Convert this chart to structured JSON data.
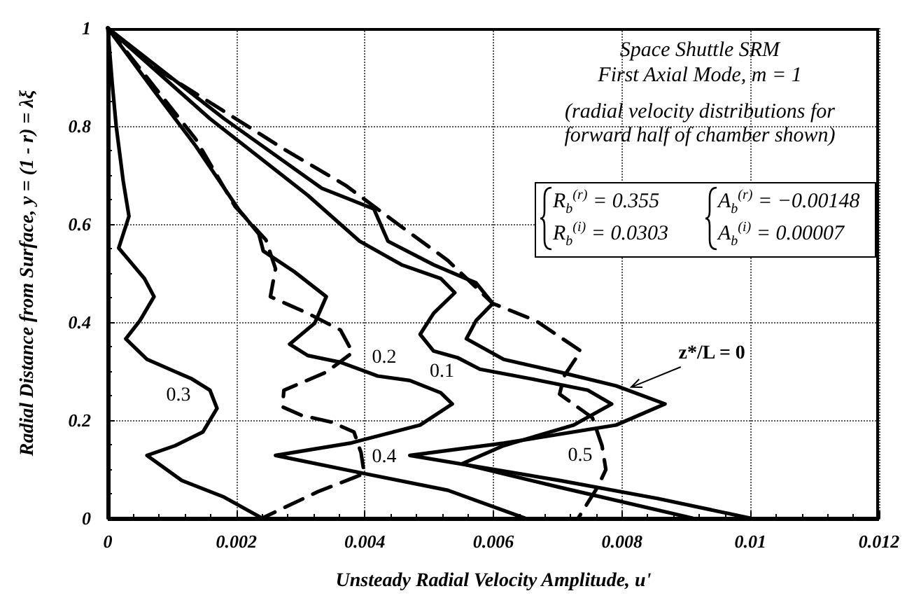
{
  "chart_data": {
    "type": "line",
    "title": "Space Shuttle SRM",
    "subtitle": "First Axial Mode, m = 1",
    "xlabel": "Unsteady Radial Velocity Amplitude, u'",
    "ylabel": "Radial Distance from Surface, y = (1 - r) = λξ",
    "annotations": [
      "(radial velocity distributions for forward half of chamber shown)",
      "R$_{b}$$^{(r)}$ = 0.355",
      "R$_{b}$$^{(i)}$ = 0.0303",
      "A$_{b}$$^{(r)}$ = −0.00148",
      "A$_{b}$$^{(i)}$ = 0.00007"
    ],
    "xlim": [
      0,
      0.012
    ],
    "xticks": [
      0,
      0.002,
      0.004,
      0.006,
      0.008,
      0.01,
      0.012
    ],
    "ylim": [
      0,
      1
    ],
    "yticks": [
      0,
      0.2,
      0.4,
      0.6,
      0.8,
      1
    ],
    "grid": true,
    "legend": false,
    "marker": "none",
    "series": [
      {
        "name": "z*/L = 0",
        "color": "#000000",
        "line_style": "solid",
        "x": [
          0,
          0.00181,
          0.00333,
          0.00414,
          0.00436,
          0.00507,
          0.00573,
          0.00599,
          0.00573,
          0.00558,
          0.00616,
          0.00703,
          0.00791,
          0.00867,
          0.00791,
          0.00616,
          0.0047,
          0.00703,
          0.00856,
          0.01
        ],
        "values": [
          1,
          0.815,
          0.673,
          0.631,
          0.565,
          0.517,
          0.48,
          0.438,
          0.403,
          0.366,
          0.324,
          0.298,
          0.27,
          0.233,
          0.19,
          0.153,
          0.128,
          0.077,
          0.04,
          0
        ]
      },
      {
        "name": "0.1",
        "color": "#000000",
        "line_style": "solid",
        "x": [
          0,
          0.00159,
          0.00311,
          0.00392,
          0.00457,
          0.00518,
          0.0054,
          0.00507,
          0.00486,
          0.00507,
          0.00545,
          0.00579,
          0.0066,
          0.00747,
          0.00784,
          0.00725,
          0.00616,
          0.00551,
          0.00703,
          0.0091
        ],
        "values": [
          1,
          0.815,
          0.659,
          0.565,
          0.517,
          0.489,
          0.46,
          0.418,
          0.375,
          0.341,
          0.327,
          0.304,
          0.284,
          0.261,
          0.233,
          0.19,
          0.148,
          0.111,
          0.063,
          0
        ]
      },
      {
        "name": "0.2",
        "color": "#000000",
        "line_style": "solid",
        "x": [
          0,
          0.00072,
          0.00137,
          0.00203,
          0.00235,
          0.00242,
          0.0029,
          0.0034,
          0.00322,
          0.00283,
          0.00311,
          0.00362,
          0.0042,
          0.0047,
          0.00518,
          0.00536,
          0.00486,
          0.00377,
          0.00261,
          0.00399,
          0.00529,
          0.00649
        ],
        "values": [
          1,
          0.872,
          0.759,
          0.631,
          0.58,
          0.545,
          0.503,
          0.452,
          0.398,
          0.355,
          0.332,
          0.318,
          0.29,
          0.281,
          0.256,
          0.233,
          0.19,
          0.153,
          0.128,
          0.091,
          0.057,
          0
        ]
      },
      {
        "name": "0.3",
        "color": "#000000",
        "line_style": "solid",
        "x": [
          0,
          7e-05,
          0.00013,
          0.00024,
          0.00033,
          0.00017,
          0.00039,
          0.00057,
          0.00072,
          0.0005,
          0.00028,
          0.00061,
          0.00131,
          0.00159,
          0.0017,
          0.00148,
          0.00105,
          0.00061,
          0.00115,
          0.00181,
          0.0024
        ],
        "values": [
          1,
          0.886,
          0.801,
          0.688,
          0.616,
          0.551,
          0.517,
          0.489,
          0.452,
          0.403,
          0.366,
          0.324,
          0.284,
          0.261,
          0.224,
          0.176,
          0.148,
          0.128,
          0.077,
          0.043,
          0
        ]
      },
      {
        "name": "0.4",
        "color": "#000000",
        "line_style": "dashed",
        "x": [
          0,
          0.00072,
          0.00137,
          0.00198,
          0.00246,
          0.00261,
          0.00253,
          0.00311,
          0.00362,
          0.00381,
          0.0034,
          0.00274,
          0.00272,
          0.00301,
          0.00348,
          0.00383,
          0.00394,
          0.00399,
          0.00327,
          0.0024
        ],
        "values": [
          1,
          0.881,
          0.773,
          0.636,
          0.568,
          0.509,
          0.452,
          0.418,
          0.384,
          0.338,
          0.298,
          0.261,
          0.227,
          0.21,
          0.196,
          0.176,
          0.134,
          0.091,
          0.054,
          0
        ]
      },
      {
        "name": "0.5",
        "color": "#000000",
        "line_style": "dashed",
        "x": [
          0,
          0.00078,
          0.00181,
          0.00274,
          0.0037,
          0.0047,
          0.00529,
          0.00599,
          0.00666,
          0.00736,
          0.0071,
          0.00703,
          0.00754,
          0.00769,
          0.00775,
          0.00762,
          0.00732
        ],
        "values": [
          1,
          0.915,
          0.83,
          0.753,
          0.679,
          0.582,
          0.526,
          0.438,
          0.403,
          0.341,
          0.29,
          0.253,
          0.205,
          0.148,
          0.099,
          0.063,
          0
        ]
      }
    ]
  }
}
